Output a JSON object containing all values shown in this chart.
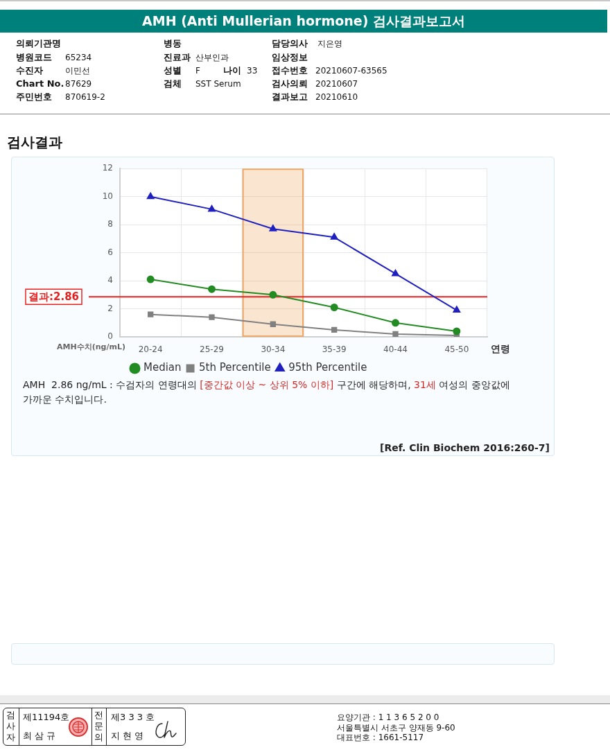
{
  "chart_data": {
    "type": "line",
    "title": "AMH (Anti Mullerian hormone) 검사결과보고서",
    "subtitle": "검사결과",
    "xlabel": "연령",
    "ylabel": "AMH수치(ng/mL)",
    "categories": [
      "20-24",
      "25-29",
      "30-34",
      "35-39",
      "40-44",
      "45-50"
    ],
    "series": [
      {
        "name": "Median",
        "color": "#228b22",
        "marker": "circle",
        "values": [
          4.1,
          3.4,
          3.0,
          2.1,
          1.0,
          0.4
        ]
      },
      {
        "name": "5th Percentile",
        "color": "#808080",
        "marker": "square",
        "values": [
          1.6,
          1.4,
          0.9,
          0.5,
          0.2,
          0.1
        ]
      },
      {
        "name": "95th Percentile",
        "color": "#2020c0",
        "marker": "triangle",
        "values": [
          10.0,
          9.1,
          7.7,
          7.1,
          4.5,
          1.9
        ]
      }
    ],
    "ylim": [
      0,
      12
    ],
    "yticks": [
      0,
      2,
      4,
      6,
      8,
      10,
      12
    ],
    "grid": true,
    "legend": "bottom",
    "ref_lines": [
      {
        "axis": "y",
        "value": 2.86,
        "label": "결과:2.86",
        "color": "#e82020"
      }
    ],
    "bands": [
      {
        "axis": "x",
        "from": "30-34",
        "to": "30-34",
        "color": "#eea868"
      }
    ],
    "annotations": [
      "의뢰기관명",
      "병동",
      "담당의사",
      "지은영",
      "병원코드",
      "65234",
      "진료과",
      "산부인과",
      "임상정보",
      "수진자",
      "이민선",
      "성별",
      "F",
      "나이",
      "33",
      "접수번호",
      "20210607-63565",
      "Chart No.",
      "87629",
      "검체",
      "SST Serum",
      "검사의뢰",
      "20210607",
      "주민번호",
      "870619-2",
      "결과보고",
      "20210610",
      "AMH  2.86 ng/mL : 수검자의 연령대의 ",
      "[중간값 이상 ~ 상위 5% 이하]",
      " 구간에 해당하며, ",
      "31세",
      " 여성의 중앙값에",
      "가까운 수치입니다.",
      "[Ref. Clin Biochem 2016:260-7]",
      "검사자",
      "제11194호",
      "최 삼 규",
      "전문의",
      "제3 3 3 호",
      "지 현 영",
      "요양기관 : 1 1 3 6 5 2 0 0",
      "서울특별시 서초구 양재동 9-60",
      "대표번호 : 1661-5117"
    ]
  }
}
